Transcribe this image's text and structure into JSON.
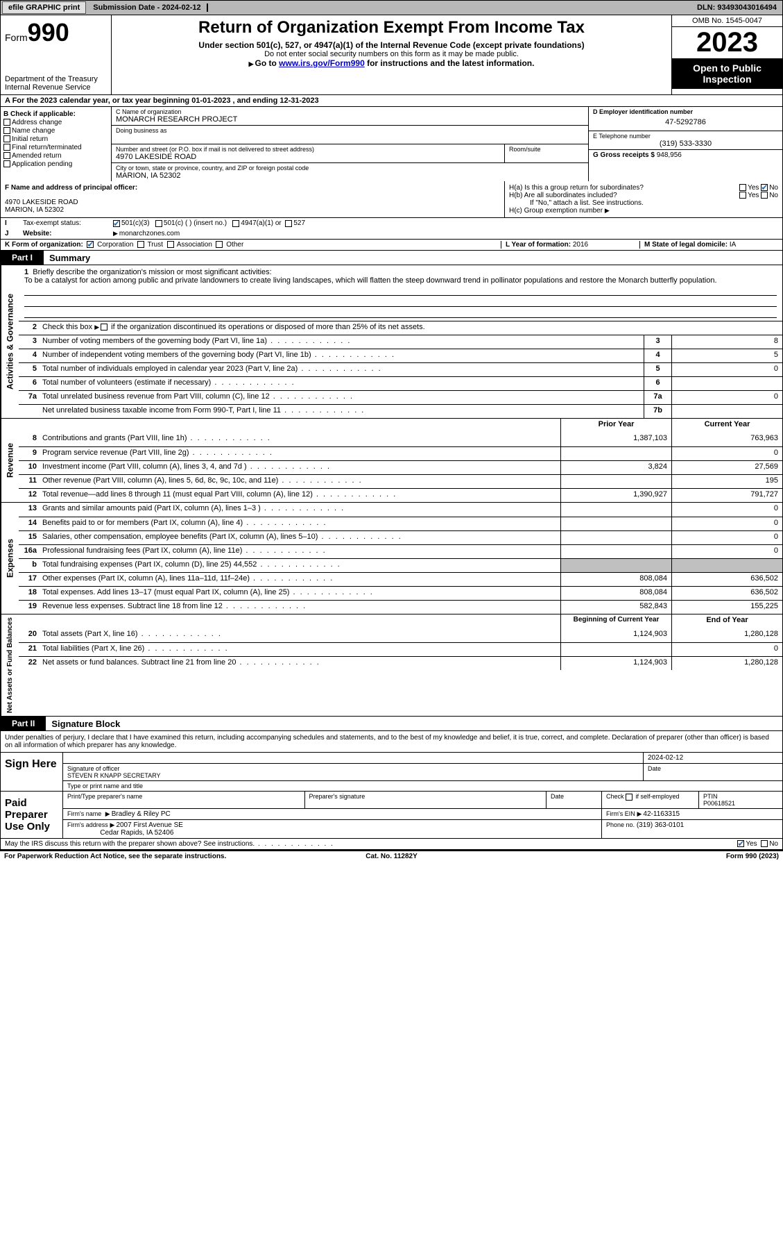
{
  "topbar": {
    "efile": "efile GRAPHIC print",
    "submission_label": "Submission Date - ",
    "submission_date": "2024-02-12",
    "dln_label": "DLN: ",
    "dln": "93493043016494"
  },
  "header": {
    "form_label": "Form",
    "form_num": "990",
    "dept": "Department of the Treasury",
    "irs": "Internal Revenue Service",
    "title": "Return of Organization Exempt From Income Tax",
    "subtitle": "Under section 501(c), 527, or 4947(a)(1) of the Internal Revenue Code (except private foundations)",
    "ssn_note": "Do not enter social security numbers on this form as it may be made public.",
    "goto_pre": "Go to ",
    "goto_link": "www.irs.gov/Form990",
    "goto_post": " for instructions and the latest information.",
    "omb": "OMB No. 1545-0047",
    "year": "2023",
    "open": "Open to Public Inspection"
  },
  "row_a": "A For the 2023 calendar year, or tax year beginning 01-01-2023    , and ending 12-31-2023",
  "col_b": {
    "title": "B Check if applicable:",
    "items": [
      "Address change",
      "Name change",
      "Initial return",
      "Final return/terminated",
      "Amended return",
      "Application pending"
    ]
  },
  "col_c": {
    "name_label": "C Name of organization",
    "name": "MONARCH RESEARCH PROJECT",
    "dba_label": "Doing business as",
    "street_label": "Number and street (or P.O. box if mail is not delivered to street address)",
    "street": "4970 LAKESIDE ROAD",
    "suite_label": "Room/suite",
    "city_label": "City or town, state or province, country, and ZIP or foreign postal code",
    "city": "MARION, IA  52302"
  },
  "col_d": {
    "ein_label": "D Employer identification number",
    "ein": "47-5292786",
    "phone_label": "E Telephone number",
    "phone": "(319) 533-3330",
    "gross_label": "G Gross receipts $ ",
    "gross": "948,956"
  },
  "section_f": {
    "label": "F  Name and address of principal officer:",
    "addr1": "4970 LAKESIDE ROAD",
    "addr2": "MARION, IA  52302"
  },
  "section_h": {
    "a": "H(a)  Is this a group return for subordinates?",
    "b": "H(b)  Are all subordinates included?",
    "b_note": "If \"No,\" attach a list. See instructions.",
    "c": "H(c)  Group exemption number",
    "yes": "Yes",
    "no": "No"
  },
  "row_i": {
    "label": "Tax-exempt status:",
    "opt1": "501(c)(3)",
    "opt2": "501(c) (  ) (insert no.)",
    "opt3": "4947(a)(1) or",
    "opt4": "527"
  },
  "row_j": {
    "label": "Website:",
    "val": "monarchzones.com"
  },
  "row_k": {
    "label": "K Form of organization:",
    "opts": [
      "Corporation",
      "Trust",
      "Association",
      "Other"
    ],
    "l_label": "L Year of formation: ",
    "l_val": "2016",
    "m_label": "M State of legal domicile: ",
    "m_val": "IA"
  },
  "part1": {
    "tab": "Part I",
    "title": "Summary"
  },
  "mission": {
    "q": "Briefly describe the organization's mission or most significant activities:",
    "text": "To be a catalyst for action among public and private landowners to create living landscapes, which will flatten the steep downward trend in pollinator populations and restore the Monarch butterfly population."
  },
  "governance": {
    "side": "Activities & Governance",
    "r2": "Check this box       if the organization discontinued its operations or disposed of more than 25% of its net assets.",
    "r3": {
      "d": "Number of voting members of the governing body (Part VI, line 1a)",
      "b": "3",
      "v": "8"
    },
    "r4": {
      "d": "Number of independent voting members of the governing body (Part VI, line 1b)",
      "b": "4",
      "v": "5"
    },
    "r5": {
      "d": "Total number of individuals employed in calendar year 2023 (Part V, line 2a)",
      "b": "5",
      "v": "0"
    },
    "r6": {
      "d": "Total number of volunteers (estimate if necessary)",
      "b": "6",
      "v": ""
    },
    "r7a": {
      "d": "Total unrelated business revenue from Part VIII, column (C), line 12",
      "b": "7a",
      "v": "0"
    },
    "r7b": {
      "d": "Net unrelated business taxable income from Form 990-T, Part I, line 11",
      "b": "7b",
      "v": ""
    }
  },
  "revenue": {
    "side": "Revenue",
    "head1": "Prior Year",
    "head2": "Current Year",
    "rows": [
      {
        "n": "8",
        "d": "Contributions and grants (Part VIII, line 1h)",
        "p": "1,387,103",
        "c": "763,963"
      },
      {
        "n": "9",
        "d": "Program service revenue (Part VIII, line 2g)",
        "p": "",
        "c": "0"
      },
      {
        "n": "10",
        "d": "Investment income (Part VIII, column (A), lines 3, 4, and 7d )",
        "p": "3,824",
        "c": "27,569"
      },
      {
        "n": "11",
        "d": "Other revenue (Part VIII, column (A), lines 5, 6d, 8c, 9c, 10c, and 11e)",
        "p": "",
        "c": "195"
      },
      {
        "n": "12",
        "d": "Total revenue—add lines 8 through 11 (must equal Part VIII, column (A), line 12)",
        "p": "1,390,927",
        "c": "791,727"
      }
    ]
  },
  "expenses": {
    "side": "Expenses",
    "rows": [
      {
        "n": "13",
        "d": "Grants and similar amounts paid (Part IX, column (A), lines 1–3 )",
        "p": "",
        "c": "0"
      },
      {
        "n": "14",
        "d": "Benefits paid to or for members (Part IX, column (A), line 4)",
        "p": "",
        "c": "0"
      },
      {
        "n": "15",
        "d": "Salaries, other compensation, employee benefits (Part IX, column (A), lines 5–10)",
        "p": "",
        "c": "0"
      },
      {
        "n": "16a",
        "d": "Professional fundraising fees (Part IX, column (A), line 11e)",
        "p": "",
        "c": "0"
      },
      {
        "n": "b",
        "d": "Total fundraising expenses (Part IX, column (D), line 25) 44,552",
        "p": "shade",
        "c": "shade"
      },
      {
        "n": "17",
        "d": "Other expenses (Part IX, column (A), lines 11a–11d, 11f–24e)",
        "p": "808,084",
        "c": "636,502"
      },
      {
        "n": "18",
        "d": "Total expenses. Add lines 13–17 (must equal Part IX, column (A), line 25)",
        "p": "808,084",
        "c": "636,502"
      },
      {
        "n": "19",
        "d": "Revenue less expenses. Subtract line 18 from line 12",
        "p": "582,843",
        "c": "155,225"
      }
    ]
  },
  "netassets": {
    "side": "Net Assets or Fund Balances",
    "head1": "Beginning of Current Year",
    "head2": "End of Year",
    "rows": [
      {
        "n": "20",
        "d": "Total assets (Part X, line 16)",
        "p": "1,124,903",
        "c": "1,280,128"
      },
      {
        "n": "21",
        "d": "Total liabilities (Part X, line 26)",
        "p": "",
        "c": "0"
      },
      {
        "n": "22",
        "d": "Net assets or fund balances. Subtract line 21 from line 20",
        "p": "1,124,903",
        "c": "1,280,128"
      }
    ]
  },
  "part2": {
    "tab": "Part II",
    "title": "Signature Block"
  },
  "sig": {
    "decl": "Under penalties of perjury, I declare that I have examined this return, including accompanying schedules and statements, and to the best of my knowledge and belief, it is true, correct, and complete. Declaration of preparer (other than officer) is based on all information of which preparer has any knowledge.",
    "sign_here": "Sign Here",
    "sig_officer": "Signature of officer",
    "officer_name": "STEVEN R KNAPP SECRETARY",
    "type_name": "Type or print name and title",
    "date_label": "Date",
    "date_val": "2024-02-12",
    "paid": "Paid Preparer Use Only",
    "prep_name_label": "Print/Type preparer's name",
    "prep_sig_label": "Preparer's signature",
    "check_self": "Check        if self-employed",
    "ptin_label": "PTIN",
    "ptin": "P00618521",
    "firm_name_label": "Firm's name",
    "firm_name": "Bradley & Riley PC",
    "firm_ein_label": "Firm's EIN",
    "firm_ein": "42-1163315",
    "firm_addr_label": "Firm's address",
    "firm_addr1": "2007 First Avenue SE",
    "firm_addr2": "Cedar Rapids, IA  52406",
    "firm_phone_label": "Phone no.",
    "firm_phone": "(319) 363-0101",
    "discuss": "May the IRS discuss this return with the preparer shown above? See instructions."
  },
  "footer": {
    "pra": "For Paperwork Reduction Act Notice, see the separate instructions.",
    "cat": "Cat. No. 11282Y",
    "form": "Form 990 (2023)"
  },
  "c_yes": "Yes",
  "c_no": "No"
}
